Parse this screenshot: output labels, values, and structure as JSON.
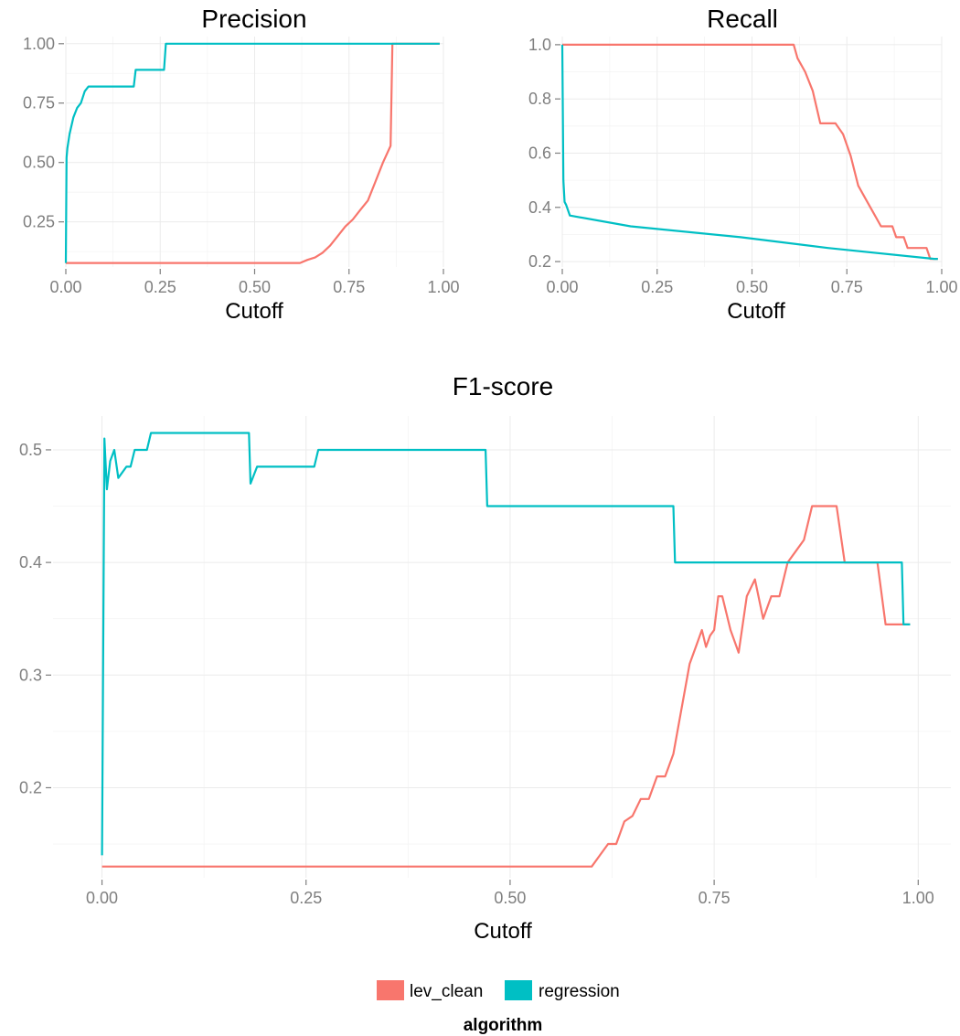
{
  "chart_data": [
    {
      "type": "line",
      "title": "Precision",
      "xlabel": "Cutoff",
      "ylabel": "",
      "xlim": [
        0,
        1
      ],
      "ylim": [
        0.06,
        1.03
      ],
      "xticks": [
        0,
        0.25,
        0.5,
        0.75,
        1
      ],
      "xtick_labels": [
        "0.00",
        "0.25",
        "0.50",
        "0.75",
        "1.00"
      ],
      "yticks": [
        0.25,
        0.5,
        0.75,
        1
      ],
      "ytick_labels": [
        "0.25",
        "0.50",
        "0.75",
        "1.00"
      ],
      "grid": true,
      "series": [
        {
          "name": "lev_clean",
          "color": "#F8766D",
          "x": [
            0,
            0.62,
            0.64,
            0.66,
            0.68,
            0.7,
            0.72,
            0.74,
            0.76,
            0.78,
            0.8,
            0.82,
            0.84,
            0.86,
            0.865,
            0.99
          ],
          "y": [
            0.077,
            0.077,
            0.09,
            0.1,
            0.12,
            0.15,
            0.19,
            0.23,
            0.26,
            0.3,
            0.34,
            0.42,
            0.5,
            0.57,
            1.0,
            1.0
          ]
        },
        {
          "name": "regression",
          "color": "#00BFC4",
          "x": [
            0,
            0.002,
            0.004,
            0.01,
            0.02,
            0.03,
            0.04,
            0.05,
            0.06,
            0.18,
            0.185,
            0.26,
            0.265,
            0.99
          ],
          "y": [
            0.077,
            0.52,
            0.56,
            0.62,
            0.69,
            0.73,
            0.75,
            0.8,
            0.82,
            0.82,
            0.89,
            0.89,
            1.0,
            1.0
          ]
        }
      ]
    },
    {
      "type": "line",
      "title": "Recall",
      "xlabel": "Cutoff",
      "ylabel": "",
      "xlim": [
        0,
        1
      ],
      "ylim": [
        0.18,
        1.03
      ],
      "xticks": [
        0,
        0.25,
        0.5,
        0.75,
        1
      ],
      "xtick_labels": [
        "0.00",
        "0.25",
        "0.50",
        "0.75",
        "1.00"
      ],
      "yticks": [
        0.2,
        0.4,
        0.6,
        0.8,
        1
      ],
      "ytick_labels": [
        "0.2",
        "0.4",
        "0.6",
        "0.8",
        "1.0"
      ],
      "grid": true,
      "series": [
        {
          "name": "lev_clean",
          "color": "#F8766D",
          "x": [
            0,
            0.61,
            0.62,
            0.64,
            0.66,
            0.68,
            0.72,
            0.74,
            0.76,
            0.78,
            0.8,
            0.82,
            0.84,
            0.87,
            0.88,
            0.9,
            0.91,
            0.96,
            0.97,
            0.99
          ],
          "y": [
            1.0,
            1.0,
            0.95,
            0.9,
            0.83,
            0.71,
            0.71,
            0.67,
            0.59,
            0.48,
            0.43,
            0.38,
            0.33,
            0.33,
            0.29,
            0.29,
            0.25,
            0.25,
            0.21,
            0.21
          ]
        },
        {
          "name": "regression",
          "color": "#00BFC4",
          "x": [
            0,
            0.003,
            0.006,
            0.01,
            0.02,
            0.18,
            0.47,
            0.7,
            0.98,
            0.99
          ],
          "y": [
            1.0,
            0.5,
            0.42,
            0.41,
            0.37,
            0.33,
            0.29,
            0.25,
            0.21,
            0.21
          ]
        }
      ]
    },
    {
      "type": "line",
      "title": "F1-score",
      "xlabel": "Cutoff",
      "ylabel": "",
      "xlim": [
        -0.06,
        1.04
      ],
      "ylim": [
        0.12,
        0.53
      ],
      "xticks": [
        0,
        0.25,
        0.5,
        0.75,
        1
      ],
      "xtick_labels": [
        "0.00",
        "0.25",
        "0.50",
        "0.75",
        "1.00"
      ],
      "yticks": [
        0.2,
        0.3,
        0.4,
        0.5
      ],
      "ytick_labels": [
        "0.2",
        "0.3",
        "0.4",
        "0.5"
      ],
      "grid": true,
      "series": [
        {
          "name": "lev_clean",
          "color": "#F8766D",
          "x": [
            0,
            0.6,
            0.61,
            0.62,
            0.63,
            0.64,
            0.65,
            0.66,
            0.67,
            0.68,
            0.69,
            0.7,
            0.71,
            0.72,
            0.73,
            0.735,
            0.74,
            0.745,
            0.75,
            0.755,
            0.76,
            0.77,
            0.78,
            0.79,
            0.8,
            0.81,
            0.82,
            0.83,
            0.84,
            0.85,
            0.86,
            0.87,
            0.9,
            0.91,
            0.95,
            0.96,
            0.99
          ],
          "y": [
            0.13,
            0.13,
            0.14,
            0.15,
            0.15,
            0.17,
            0.175,
            0.19,
            0.19,
            0.21,
            0.21,
            0.23,
            0.27,
            0.31,
            0.33,
            0.34,
            0.325,
            0.335,
            0.34,
            0.37,
            0.37,
            0.34,
            0.32,
            0.37,
            0.385,
            0.35,
            0.37,
            0.37,
            0.4,
            0.41,
            0.42,
            0.45,
            0.45,
            0.4,
            0.4,
            0.345,
            0.345
          ]
        },
        {
          "name": "regression",
          "color": "#00BFC4",
          "x": [
            0,
            0.003,
            0.006,
            0.01,
            0.015,
            0.02,
            0.03,
            0.035,
            0.04,
            0.055,
            0.06,
            0.18,
            0.182,
            0.19,
            0.26,
            0.265,
            0.47,
            0.472,
            0.7,
            0.702,
            0.98,
            0.982,
            0.99
          ],
          "y": [
            0.14,
            0.51,
            0.465,
            0.49,
            0.5,
            0.475,
            0.485,
            0.485,
            0.5,
            0.5,
            0.515,
            0.515,
            0.47,
            0.485,
            0.485,
            0.5,
            0.5,
            0.45,
            0.45,
            0.4,
            0.4,
            0.345,
            0.345
          ]
        }
      ]
    }
  ],
  "legend": {
    "title": "algorithm",
    "items": [
      {
        "label": "lev_clean",
        "color": "#F8766D"
      },
      {
        "label": "regression",
        "color": "#00BFC4"
      }
    ]
  }
}
